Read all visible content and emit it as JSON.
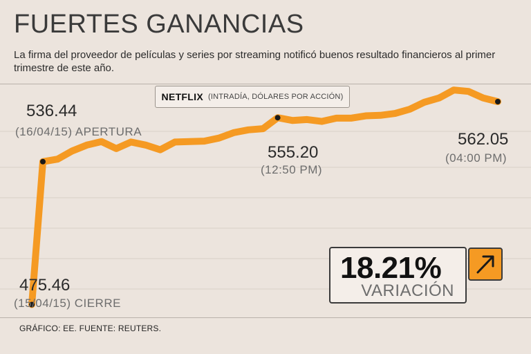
{
  "header": {
    "title": "FUERTES GANANCIAS",
    "subtitle": "La firma del proveedor de películas y series por streaming notificó buenos resultado financieros al primer trimestre de este año."
  },
  "legend": {
    "brand": "NETFLIX",
    "note": "(INTRADÍA, DÓLARES POR ACCIÓN)"
  },
  "annotations": {
    "start": {
      "value": "475.46",
      "label": "(15/04/15) CIERRE"
    },
    "open": {
      "value": "536.44",
      "label": "(16/04/15) APERTURA"
    },
    "mid": {
      "value": "555.20",
      "label": "(12:50 PM)"
    },
    "end": {
      "value": "562.05",
      "label": "(04:00 PM)"
    }
  },
  "variation": {
    "percent": "18.21%",
    "label": "VARIACIÓN",
    "icon": "arrow-up-right-icon"
  },
  "footer": "GRÁFICO: EE. FUENTE: REUTERS.",
  "colors": {
    "line": "#f59a23",
    "background": "#ece4dd",
    "accent": "#f59a23"
  },
  "chart_data": {
    "type": "line",
    "series": [
      {
        "values": [
          475.46,
          536.44,
          537.5,
          541,
          543.5,
          545,
          542,
          544.8,
          543.5,
          541.5,
          544.8,
          545,
          545.2,
          546.5,
          548.8,
          550,
          550.5,
          555.2,
          554,
          554.4,
          553.6,
          555,
          555,
          556,
          556.2,
          557,
          558.8,
          561.8,
          563.6,
          567,
          566.4,
          563.6,
          562.05
        ]
      }
    ],
    "ylim": [
      470,
      570
    ],
    "grid": true,
    "marked_points": [
      {
        "index": 0,
        "value": 475.46
      },
      {
        "index": 1,
        "value": 536.44
      },
      {
        "index": 17,
        "value": 555.2
      },
      {
        "index": 32,
        "value": 562.05
      }
    ]
  }
}
